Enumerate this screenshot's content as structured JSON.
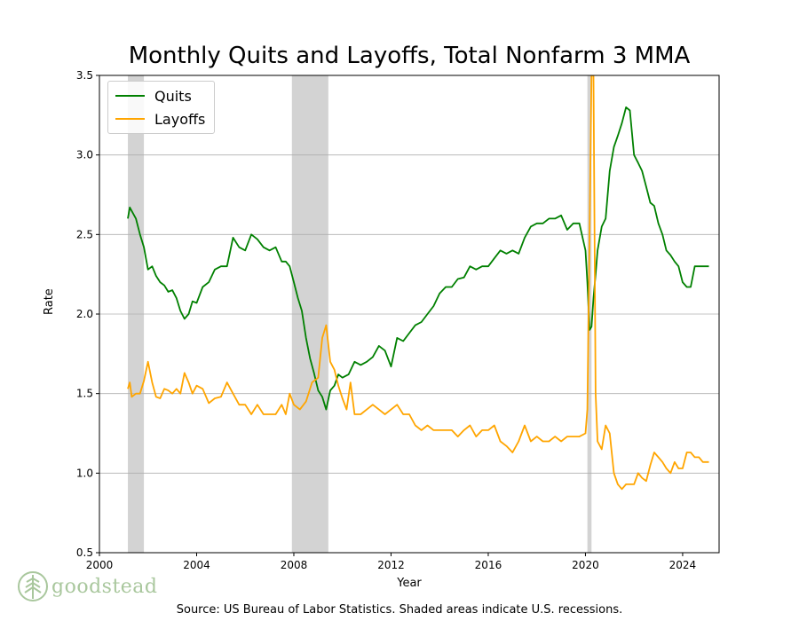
{
  "chart_data": {
    "type": "line",
    "title": "Monthly Quits and Layoffs, Total Nonfarm 3 MMA",
    "xlabel": "Year",
    "ylabel": "Rate",
    "xlim": [
      2000.0,
      2025.5
    ],
    "ylim": [
      0.5,
      3.5
    ],
    "xticks": [
      2000,
      2004,
      2008,
      2012,
      2016,
      2020,
      2024
    ],
    "yticks": [
      0.5,
      1.0,
      1.5,
      2.0,
      2.5,
      3.0,
      3.5
    ],
    "ytick_labels": [
      "0.5",
      "1.0",
      "1.5",
      "2.0",
      "2.5",
      "3.0",
      "3.5"
    ],
    "grid": "horizontal",
    "legend_position": "top-left",
    "recessions": [
      [
        2001.17,
        2001.83
      ],
      [
        2007.92,
        2009.42
      ],
      [
        2020.08,
        2020.25
      ]
    ],
    "series": [
      {
        "name": "Quits",
        "color": "#008000",
        "x": [
          2001.17,
          2001.25,
          2001.5,
          2001.67,
          2001.83,
          2002.0,
          2002.17,
          2002.33,
          2002.5,
          2002.67,
          2002.83,
          2003.0,
          2003.17,
          2003.33,
          2003.5,
          2003.67,
          2003.83,
          2004.0,
          2004.25,
          2004.5,
          2004.75,
          2005.0,
          2005.25,
          2005.5,
          2005.75,
          2006.0,
          2006.25,
          2006.5,
          2006.75,
          2007.0,
          2007.25,
          2007.5,
          2007.67,
          2007.83,
          2008.0,
          2008.17,
          2008.33,
          2008.5,
          2008.67,
          2008.83,
          2009.0,
          2009.17,
          2009.33,
          2009.5,
          2009.67,
          2009.83,
          2010.0,
          2010.25,
          2010.5,
          2010.75,
          2011.0,
          2011.25,
          2011.5,
          2011.75,
          2012.0,
          2012.25,
          2012.5,
          2012.75,
          2013.0,
          2013.25,
          2013.5,
          2013.75,
          2014.0,
          2014.25,
          2014.5,
          2014.75,
          2015.0,
          2015.25,
          2015.5,
          2015.75,
          2016.0,
          2016.25,
          2016.5,
          2016.75,
          2017.0,
          2017.25,
          2017.5,
          2017.75,
          2018.0,
          2018.25,
          2018.5,
          2018.75,
          2019.0,
          2019.25,
          2019.5,
          2019.75,
          2020.0,
          2020.08,
          2020.17,
          2020.25,
          2020.33,
          2020.42,
          2020.5,
          2020.67,
          2020.83,
          2021.0,
          2021.17,
          2021.33,
          2021.5,
          2021.67,
          2021.83,
          2022.0,
          2022.17,
          2022.33,
          2022.5,
          2022.67,
          2022.83,
          2023.0,
          2023.17,
          2023.33,
          2023.5,
          2023.67,
          2023.83,
          2024.0,
          2024.17,
          2024.33,
          2024.5,
          2024.67,
          2024.83,
          2025.0,
          2025.08
        ],
        "values": [
          2.6,
          2.67,
          2.6,
          2.5,
          2.42,
          2.28,
          2.3,
          2.24,
          2.2,
          2.18,
          2.14,
          2.15,
          2.1,
          2.02,
          1.97,
          2.0,
          2.08,
          2.07,
          2.17,
          2.2,
          2.28,
          2.3,
          2.3,
          2.48,
          2.42,
          2.4,
          2.5,
          2.47,
          2.42,
          2.4,
          2.42,
          2.33,
          2.33,
          2.3,
          2.2,
          2.1,
          2.02,
          1.85,
          1.72,
          1.63,
          1.52,
          1.48,
          1.4,
          1.52,
          1.55,
          1.62,
          1.6,
          1.62,
          1.7,
          1.68,
          1.7,
          1.73,
          1.8,
          1.77,
          1.67,
          1.85,
          1.83,
          1.88,
          1.93,
          1.95,
          2.0,
          2.05,
          2.13,
          2.17,
          2.17,
          2.22,
          2.23,
          2.3,
          2.28,
          2.3,
          2.3,
          2.35,
          2.4,
          2.38,
          2.4,
          2.38,
          2.48,
          2.55,
          2.57,
          2.57,
          2.6,
          2.6,
          2.62,
          2.53,
          2.57,
          2.57,
          2.4,
          2.2,
          1.9,
          1.92,
          2.1,
          2.25,
          2.4,
          2.55,
          2.6,
          2.9,
          3.05,
          3.12,
          3.2,
          3.3,
          3.28,
          3.0,
          2.95,
          2.9,
          2.8,
          2.7,
          2.68,
          2.57,
          2.5,
          2.4,
          2.37,
          2.33,
          2.3,
          2.2,
          2.17,
          2.17,
          2.3,
          2.3,
          2.3,
          2.3,
          2.3
        ]
      },
      {
        "name": "Layoffs",
        "color": "#FFA500",
        "x": [
          2001.17,
          2001.25,
          2001.33,
          2001.5,
          2001.67,
          2001.83,
          2002.0,
          2002.17,
          2002.33,
          2002.5,
          2002.67,
          2002.83,
          2003.0,
          2003.17,
          2003.33,
          2003.5,
          2003.67,
          2003.83,
          2004.0,
          2004.25,
          2004.5,
          2004.75,
          2005.0,
          2005.25,
          2005.5,
          2005.75,
          2006.0,
          2006.25,
          2006.5,
          2006.75,
          2007.0,
          2007.25,
          2007.5,
          2007.67,
          2007.83,
          2008.0,
          2008.25,
          2008.5,
          2008.75,
          2009.0,
          2009.17,
          2009.33,
          2009.5,
          2009.67,
          2009.83,
          2010.0,
          2010.17,
          2010.33,
          2010.5,
          2010.75,
          2011.0,
          2011.25,
          2011.5,
          2011.75,
          2012.0,
          2012.25,
          2012.5,
          2012.75,
          2013.0,
          2013.25,
          2013.5,
          2013.75,
          2014.0,
          2014.25,
          2014.5,
          2014.75,
          2015.0,
          2015.25,
          2015.5,
          2015.75,
          2016.0,
          2016.25,
          2016.5,
          2016.75,
          2017.0,
          2017.25,
          2017.5,
          2017.75,
          2018.0,
          2018.25,
          2018.5,
          2018.75,
          2019.0,
          2019.25,
          2019.5,
          2019.75,
          2020.0,
          2020.08,
          2020.17,
          2020.25,
          2020.33,
          2020.42,
          2020.5,
          2020.67,
          2020.83,
          2021.0,
          2021.17,
          2021.33,
          2021.5,
          2021.67,
          2021.83,
          2022.0,
          2022.17,
          2022.33,
          2022.5,
          2022.67,
          2022.83,
          2023.0,
          2023.17,
          2023.33,
          2023.5,
          2023.67,
          2023.83,
          2024.0,
          2024.17,
          2024.33,
          2024.5,
          2024.67,
          2024.83,
          2025.0,
          2025.08
        ],
        "values": [
          1.53,
          1.57,
          1.48,
          1.5,
          1.5,
          1.58,
          1.7,
          1.57,
          1.48,
          1.47,
          1.53,
          1.52,
          1.5,
          1.53,
          1.5,
          1.63,
          1.57,
          1.5,
          1.55,
          1.53,
          1.44,
          1.47,
          1.48,
          1.57,
          1.5,
          1.43,
          1.43,
          1.37,
          1.43,
          1.37,
          1.37,
          1.37,
          1.43,
          1.37,
          1.5,
          1.43,
          1.4,
          1.45,
          1.57,
          1.6,
          1.85,
          1.93,
          1.7,
          1.65,
          1.55,
          1.47,
          1.4,
          1.57,
          1.37,
          1.37,
          1.4,
          1.43,
          1.4,
          1.37,
          1.4,
          1.43,
          1.37,
          1.37,
          1.3,
          1.27,
          1.3,
          1.27,
          1.27,
          1.27,
          1.27,
          1.23,
          1.27,
          1.3,
          1.23,
          1.27,
          1.27,
          1.3,
          1.2,
          1.17,
          1.13,
          1.2,
          1.3,
          1.2,
          1.23,
          1.2,
          1.2,
          1.23,
          1.2,
          1.23,
          1.23,
          1.23,
          1.25,
          1.4,
          2.5,
          3.5,
          3.5,
          1.5,
          1.2,
          1.15,
          1.3,
          1.25,
          1.0,
          0.93,
          0.9,
          0.93,
          0.93,
          0.93,
          1.0,
          0.97,
          0.95,
          1.05,
          1.13,
          1.1,
          1.07,
          1.03,
          1.0,
          1.07,
          1.03,
          1.03,
          1.13,
          1.13,
          1.1,
          1.1,
          1.07,
          1.07,
          1.07
        ]
      }
    ]
  },
  "labels": {
    "source": "Source: US Bureau of Labor Statistics. Shaded areas indicate U.S. recessions.",
    "logo_text": "goodstead",
    "logo_icon": "tree-icon"
  }
}
